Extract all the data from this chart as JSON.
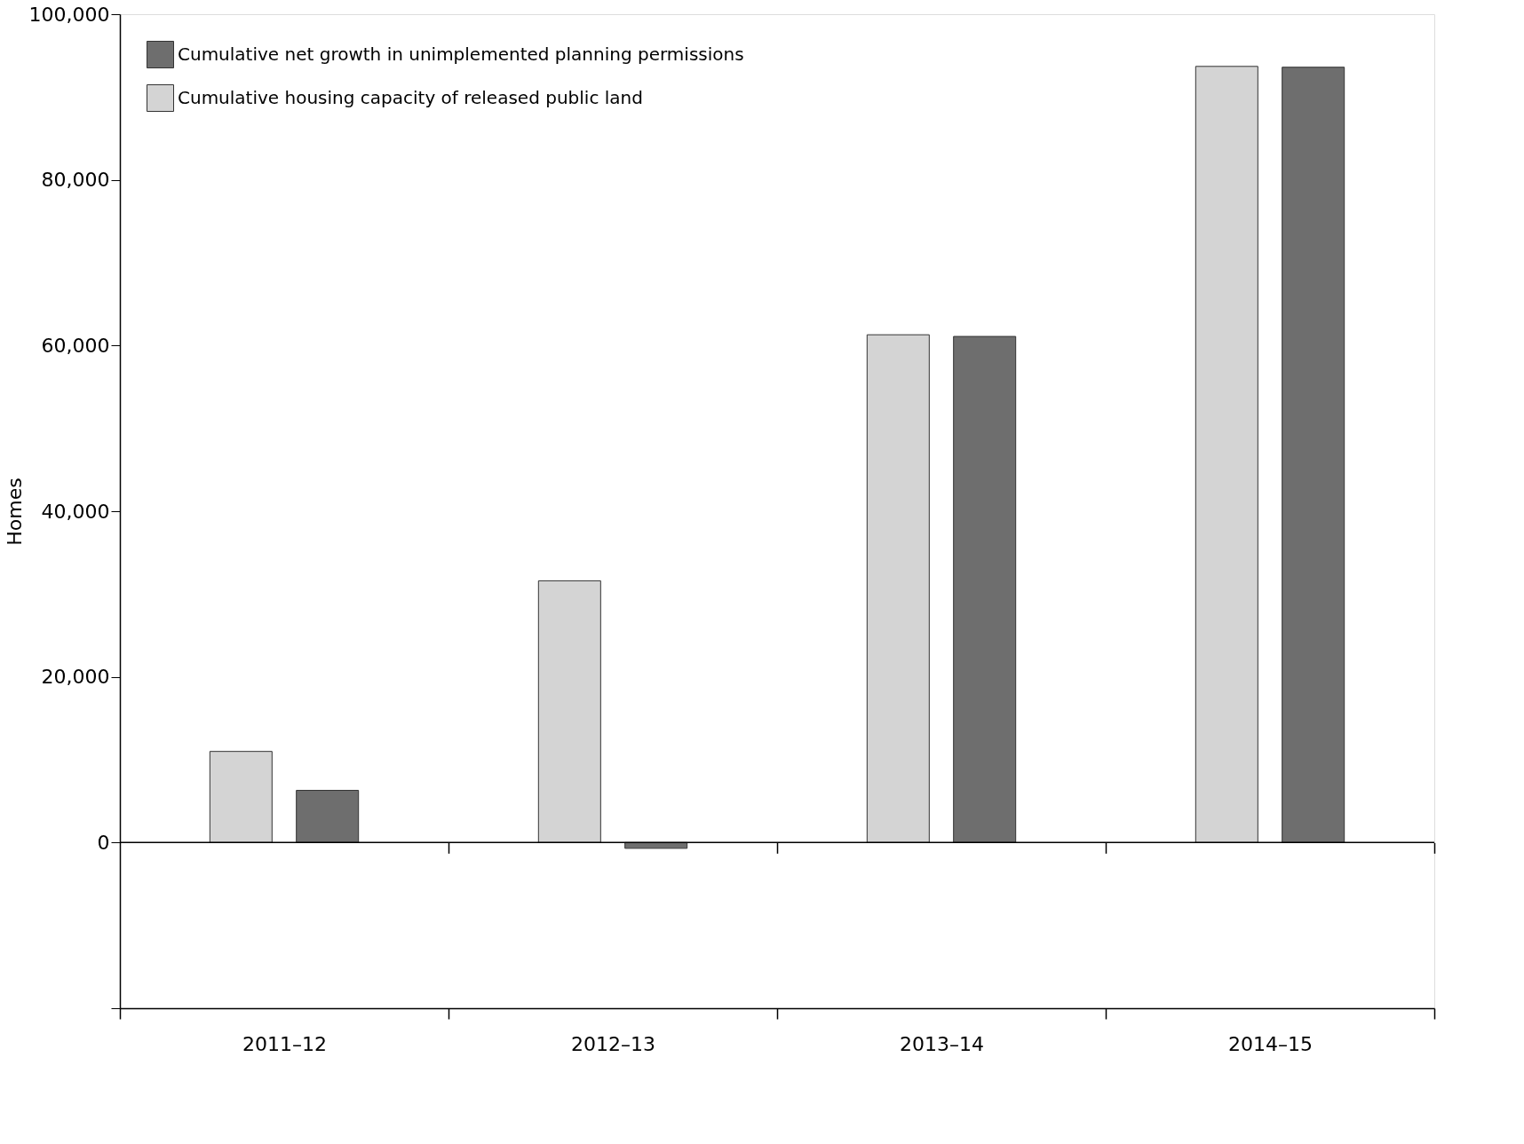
{
  "chart_data": {
    "type": "bar",
    "ylabel": "Homes",
    "categories": [
      "2011–12",
      "2012–13",
      "2013–14",
      "2014–15"
    ],
    "series": [
      {
        "name": "Cumulative housing capacity of released public land",
        "color": "#d4d4d4",
        "values": [
          11000,
          31600,
          61300,
          93700
        ]
      },
      {
        "name": "Cumulative net growth in unimplemented planning permissions",
        "color": "#6e6e6e",
        "values": [
          6300,
          -700,
          61100,
          93600
        ]
      }
    ],
    "ylim": [
      -20000,
      100000
    ],
    "yticks": [
      {
        "value": -20000,
        "label": null
      },
      0,
      {
        "value": 20000,
        "label": "20,000"
      },
      {
        "value": 40000,
        "label": "40,000"
      },
      {
        "value": 60000,
        "label": "60,000"
      },
      {
        "value": 80000,
        "label": "80,000"
      },
      {
        "value": 100000,
        "label": "100,000"
      }
    ],
    "ref_lines": [
      {
        "axis": "y",
        "value": 0
      }
    ],
    "grid": false,
    "legend": "top left"
  }
}
